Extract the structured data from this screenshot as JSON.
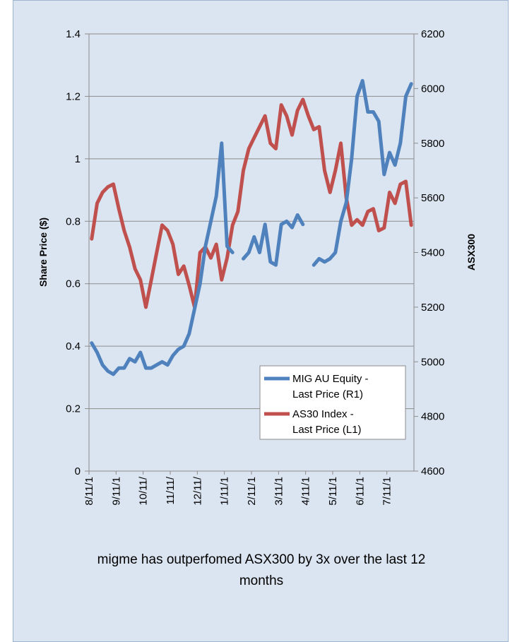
{
  "chart_data": {
    "type": "line",
    "title": "migme has outperfomed ASX300 by 3x over the last 12 months",
    "y_label": "Share Price ($)",
    "y2_label": "ASX300",
    "categories": [
      "8/11/1",
      null,
      null,
      null,
      null,
      "9/11/1",
      null,
      null,
      null,
      null,
      "10/11/",
      null,
      null,
      null,
      null,
      "11/11/",
      null,
      null,
      null,
      null,
      "12/11/",
      null,
      null,
      null,
      null,
      "1/11/1",
      null,
      null,
      null,
      null,
      "2/11/1",
      null,
      null,
      null,
      null,
      "3/11/1",
      null,
      null,
      null,
      null,
      "4/11/1",
      null,
      null,
      null,
      null,
      "5/11/1",
      null,
      null,
      null,
      null,
      "6/11/1",
      null,
      null,
      null,
      null,
      "7/11/1",
      null,
      null,
      null,
      null
    ],
    "ylim": [
      0,
      1.4
    ],
    "yticks": [
      0,
      0.2,
      0.4,
      0.6,
      0.8,
      1,
      1.2,
      1.4
    ],
    "y2lim": [
      4600,
      6200
    ],
    "y2ticks": [
      4600,
      4800,
      5000,
      5200,
      5400,
      5600,
      5800,
      6000,
      6200
    ],
    "grid": true,
    "legend": "lower right",
    "series": [
      {
        "name": "MIG AU Equity - Last Price (R1)",
        "color": "#4f81bd",
        "values": [
          0.41,
          0.38,
          0.34,
          0.32,
          0.31,
          0.33,
          0.33,
          0.36,
          0.35,
          0.38,
          0.33,
          0.33,
          0.34,
          0.35,
          0.34,
          0.37,
          0.39,
          0.4,
          0.44,
          0.52,
          0.6,
          0.72,
          0.8,
          0.88,
          1.05,
          0.72,
          0.7,
          null,
          0.68,
          0.7,
          0.75,
          0.7,
          0.79,
          0.67,
          0.66,
          0.79,
          0.8,
          0.78,
          0.82,
          0.79,
          null,
          0.66,
          0.68,
          0.67,
          0.68,
          0.7,
          0.8,
          0.86,
          1.0,
          1.2,
          1.25,
          1.15,
          1.15,
          1.12,
          0.95,
          1.02,
          0.98,
          1.05,
          1.2,
          1.24
        ]
      },
      {
        "name": "AS30 Index - Last Price (L1)",
        "color": "#c0504d",
        "axis": "y2",
        "values": [
          5450,
          5580,
          5620,
          5640,
          5650,
          5560,
          5480,
          5420,
          5340,
          5300,
          5200,
          5300,
          5400,
          5500,
          5480,
          5430,
          5320,
          5350,
          5280,
          5200,
          5400,
          5420,
          5380,
          5430,
          5300,
          5380,
          5500,
          5550,
          5700,
          5780,
          5820,
          5860,
          5900,
          5800,
          5780,
          5940,
          5900,
          5830,
          5920,
          5960,
          5900,
          5850,
          5860,
          5700,
          5620,
          5700,
          5800,
          5600,
          5500,
          5520,
          5500,
          5550,
          5560,
          5480,
          5490,
          5620,
          5580,
          5650,
          5660,
          5500
        ]
      }
    ]
  }
}
